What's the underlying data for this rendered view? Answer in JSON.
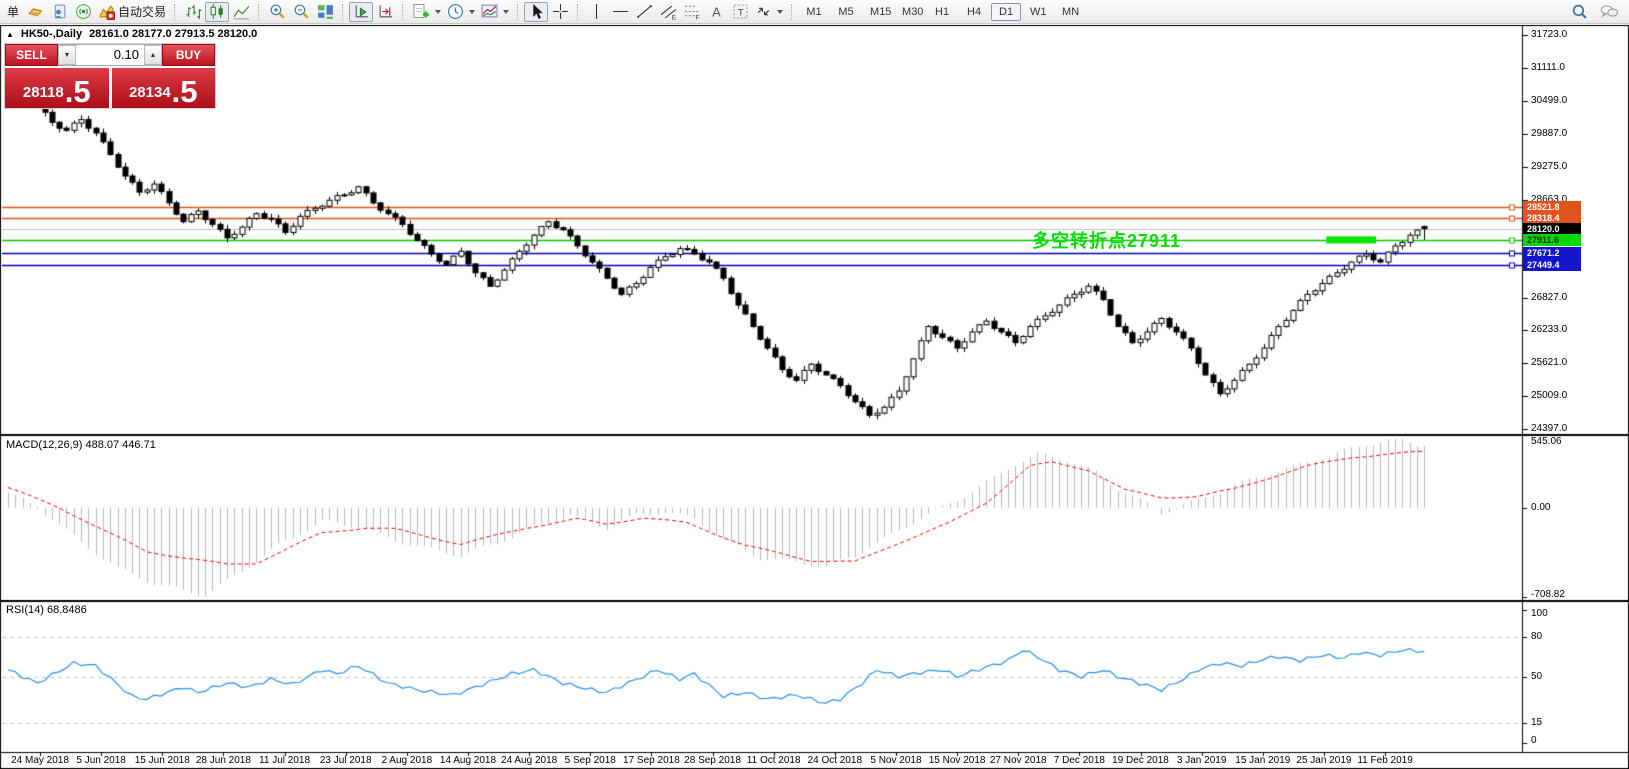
{
  "toolbar": {
    "menu_partial": "单",
    "autotrade_label": "自动交易",
    "timeframes": [
      "M1",
      "M5",
      "M15",
      "M30",
      "H1",
      "H4",
      "D1",
      "W1",
      "MN"
    ],
    "active_timeframe": "D1"
  },
  "chart_header": {
    "collapse_arrow": "▲",
    "symbol_title": "HK50-,Daily",
    "ohlc_text": "28161.0 28177.0 27913.5 28120.0"
  },
  "trade_panel": {
    "sell_label": "SELL",
    "buy_label": "BUY",
    "volume": "0.10",
    "sell_price_main": "28118",
    "sell_price_frac": ".5",
    "buy_price_main": "28134",
    "buy_price_frac": ".5"
  },
  "annotation": {
    "text": "多空转折点27911",
    "color": "#00dd00"
  },
  "indicator_labels": {
    "macd": "MACD(12,26,9) 488.07 446.71",
    "rsi": "RSI(14) 68.8486"
  },
  "axes": {
    "price_ticks": [
      "31723.0",
      "31111.0",
      "30499.0",
      "29887.0",
      "29275.0",
      "28663.0",
      "26827.0",
      "26233.0",
      "25621.0",
      "25009.0",
      "24397.0"
    ],
    "macd_ticks": [
      "545.06",
      "0.00",
      "-708.82"
    ],
    "rsi_ticks": [
      "100",
      "80",
      "50",
      "15",
      "0"
    ],
    "date_labels": [
      "24 May 2018",
      "5 Jun 2018",
      "15 Jun 2018",
      "28 Jun 2018",
      "11 Jul 2018",
      "23 Jul 2018",
      "2 Aug 2018",
      "14 Aug 2018",
      "24 Aug 2018",
      "5 Sep 2018",
      "17 Sep 2018",
      "28 Sep 2018",
      "11 Oct 2018",
      "24 Oct 2018",
      "5 Nov 2018",
      "15 Nov 2018",
      "27 Nov 2018",
      "7 Dec 2018",
      "19 Dec 2018",
      "3 Jan 2019",
      "15 Jan 2019",
      "25 Jan 2019",
      "11 Feb 2019"
    ]
  },
  "price_lines": [
    {
      "label": "28521.8",
      "price": 28521.8,
      "line_color": "#e0531c",
      "tag_bg": "#e0531c",
      "tag_fg": "#ffffff",
      "anchor": true
    },
    {
      "label": "28318.4",
      "price": 28318.4,
      "line_color": "#e0531c",
      "tag_bg": "#e0531c",
      "tag_fg": "#ffffff",
      "anchor": true
    },
    {
      "label": "28120.0",
      "price": 28120.0,
      "line_color": "#c0c0c0",
      "tag_bg": "#000000",
      "tag_fg": "#ffffff",
      "anchor": false
    },
    {
      "label": "27911.6",
      "price": 27911.6,
      "line_color": "#00cc00",
      "tag_bg": "#00d800",
      "tag_fg": "#003300",
      "anchor": true
    },
    {
      "label": "27671.2",
      "price": 27671.2,
      "line_color": "#0000c0",
      "tag_bg": "#1414cc",
      "tag_fg": "#ffffff",
      "anchor": true
    },
    {
      "label": "27449.4",
      "price": 27449.4,
      "line_color": "#0000c0",
      "tag_bg": "#1414cc",
      "tag_fg": "#ffffff",
      "anchor": true
    }
  ],
  "chart_data": {
    "type": "candlestick",
    "symbol": "HK50-",
    "period": "Daily",
    "price_axis_range": {
      "top": 31723.0,
      "bottom": 24397.0
    },
    "last_candle": {
      "open": 28161.0,
      "high": 28177.0,
      "low": 27913.5,
      "close": 28120.0
    },
    "closes": [
      30500,
      30610,
      30650,
      30490,
      30400,
      30285,
      30100,
      29990,
      29950,
      30085,
      30150,
      29990,
      29900,
      29735,
      29500,
      29265,
      29100,
      28985,
      28800,
      28840,
      28950,
      28810,
      28600,
      28390,
      28250,
      28385,
      28450,
      28290,
      28200,
      28110,
      27950,
      28015,
      28150,
      28310,
      28400,
      28315,
      28300,
      28210,
      28050,
      28165,
      28350,
      28460,
      28500,
      28540,
      28650,
      28735,
      28750,
      28790,
      28900,
      28785,
      28600,
      28465,
      28400,
      28335,
      28200,
      28015,
      27900,
      27810,
      27650,
      27515,
      27450,
      27610,
      27700,
      27465,
      27300,
      27210,
      27050,
      27165,
      27350,
      27560,
      27700,
      27815,
      28000,
      28160,
      28250,
      28140,
      28100,
      27985,
      27800,
      27615,
      27500,
      27385,
      27200,
      27015,
      26900,
      27035,
      27100,
      27215,
      27400,
      27535,
      27600,
      27640,
      27750,
      27735,
      27650,
      27540,
      27500,
      27385,
      27200,
      26915,
      26700,
      26535,
      26300,
      26065,
      25900,
      25735,
      25500,
      25365,
      25300,
      25485,
      25600,
      25465,
      25400,
      25335,
      25200,
      25015,
      24900,
      24810,
      24650,
      24690,
      24800,
      24985,
      25100,
      25365,
      25700,
      26035,
      26300,
      26165,
      26100,
      26035,
      25900,
      26015,
      26200,
      26335,
      26400,
      26265,
      26200,
      26135,
      26000,
      26115,
      26300,
      26435,
      26500,
      26565,
      26700,
      26835,
      26900,
      26940,
      27050,
      26960,
      26800,
      26515,
      26300,
      26185,
      26000,
      26065,
      26200,
      26360,
      26450,
      26290,
      26200,
      26085,
      25900,
      25615,
      25400,
      25260,
      25050,
      25140,
      25300,
      25485,
      25600,
      25715,
      25900,
      26135,
      26300,
      26415,
      26600,
      26785,
      26900,
      26965,
      27100,
      27235,
      27300,
      27365,
      27500,
      27610,
      27650,
      27540,
      27500,
      27685,
      27800,
      27865,
      28000,
      28095,
      28120
    ],
    "highlight_segment": {
      "price": 27911.6,
      "color": "#00e400",
      "bar_start": 181,
      "bar_end": 187
    },
    "macd": {
      "params": "12,26,9",
      "main_value": 488.07,
      "signal_value": 446.71,
      "scale_max": 545.06,
      "scale_min": -708.82,
      "hist_waypoints": [
        [
          0,
          120
        ],
        [
          3,
          30
        ],
        [
          6,
          -80
        ],
        [
          10,
          -280
        ],
        [
          15,
          -480
        ],
        [
          20,
          -600
        ],
        [
          27,
          -700
        ],
        [
          32,
          -500
        ],
        [
          38,
          -260
        ],
        [
          43,
          -110
        ],
        [
          48,
          -150
        ],
        [
          53,
          -260
        ],
        [
          58,
          -330
        ],
        [
          62,
          -380
        ],
        [
          67,
          -280
        ],
        [
          72,
          -150
        ],
        [
          77,
          -60
        ],
        [
          82,
          -160
        ],
        [
          86,
          -60
        ],
        [
          90,
          -30
        ],
        [
          94,
          -90
        ],
        [
          98,
          -250
        ],
        [
          103,
          -400
        ],
        [
          108,
          -430
        ],
        [
          112,
          -470
        ],
        [
          116,
          -380
        ],
        [
          120,
          -250
        ],
        [
          125,
          -80
        ],
        [
          130,
          60
        ],
        [
          134,
          200
        ],
        [
          138,
          350
        ],
        [
          141,
          420
        ],
        [
          145,
          380
        ],
        [
          149,
          280
        ],
        [
          152,
          150
        ],
        [
          155,
          60
        ],
        [
          158,
          -40
        ],
        [
          161,
          20
        ],
        [
          164,
          80
        ],
        [
          167,
          150
        ],
        [
          170,
          220
        ],
        [
          174,
          290
        ],
        [
          178,
          360
        ],
        [
          182,
          430
        ],
        [
          186,
          500
        ],
        [
          190,
          545
        ],
        [
          194,
          488.07
        ]
      ],
      "signal_waypoints": [
        [
          0,
          160
        ],
        [
          7,
          0
        ],
        [
          19,
          -350
        ],
        [
          30,
          -450
        ],
        [
          34,
          -440
        ],
        [
          43,
          -200
        ],
        [
          49,
          -160
        ],
        [
          53,
          -170
        ],
        [
          62,
          -290
        ],
        [
          71,
          -160
        ],
        [
          78,
          -90
        ],
        [
          82,
          -130
        ],
        [
          87,
          -80
        ],
        [
          93,
          -120
        ],
        [
          101,
          -300
        ],
        [
          110,
          -420
        ],
        [
          116,
          -430
        ],
        [
          122,
          -280
        ],
        [
          129,
          -120
        ],
        [
          134,
          40
        ],
        [
          140,
          330
        ],
        [
          143,
          360
        ],
        [
          148,
          300
        ],
        [
          153,
          140
        ],
        [
          158,
          80
        ],
        [
          163,
          90
        ],
        [
          168,
          150
        ],
        [
          173,
          240
        ],
        [
          178,
          330
        ],
        [
          184,
          400
        ],
        [
          194,
          446.71
        ]
      ]
    },
    "rsi": {
      "period": 14,
      "value": 68.8486,
      "levels": [
        80,
        50,
        15
      ],
      "waypoints": [
        [
          0,
          55
        ],
        [
          4,
          45
        ],
        [
          9,
          60
        ],
        [
          12,
          58
        ],
        [
          17,
          35
        ],
        [
          19,
          33
        ],
        [
          24,
          42
        ],
        [
          26,
          38
        ],
        [
          30,
          45
        ],
        [
          33,
          42
        ],
        [
          36,
          48
        ],
        [
          39,
          44
        ],
        [
          43,
          55
        ],
        [
          45,
          52
        ],
        [
          48,
          58
        ],
        [
          52,
          45
        ],
        [
          56,
          40
        ],
        [
          61,
          36
        ],
        [
          65,
          44
        ],
        [
          69,
          52
        ],
        [
          72,
          55
        ],
        [
          76,
          45
        ],
        [
          80,
          40
        ],
        [
          82,
          38
        ],
        [
          87,
          50
        ],
        [
          89,
          55
        ],
        [
          92,
          48
        ],
        [
          94,
          52
        ],
        [
          98,
          35
        ],
        [
          101,
          38
        ],
        [
          104,
          33
        ],
        [
          108,
          36
        ],
        [
          112,
          30
        ],
        [
          114,
          33
        ],
        [
          117,
          45
        ],
        [
          119,
          55
        ],
        [
          122,
          50
        ],
        [
          125,
          53
        ],
        [
          128,
          55
        ],
        [
          130,
          50
        ],
        [
          134,
          57
        ],
        [
          137,
          62
        ],
        [
          139,
          70
        ],
        [
          141,
          65
        ],
        [
          144,
          55
        ],
        [
          147,
          50
        ],
        [
          150,
          55
        ],
        [
          152,
          50
        ],
        [
          155,
          45
        ],
        [
          158,
          40
        ],
        [
          161,
          48
        ],
        [
          163,
          55
        ],
        [
          166,
          60
        ],
        [
          169,
          58
        ],
        [
          172,
          63
        ],
        [
          174,
          65
        ],
        [
          177,
          62
        ],
        [
          180,
          66
        ],
        [
          183,
          64
        ],
        [
          185,
          68
        ],
        [
          188,
          66
        ],
        [
          191,
          70
        ],
        [
          194,
          68.8486
        ]
      ]
    }
  }
}
